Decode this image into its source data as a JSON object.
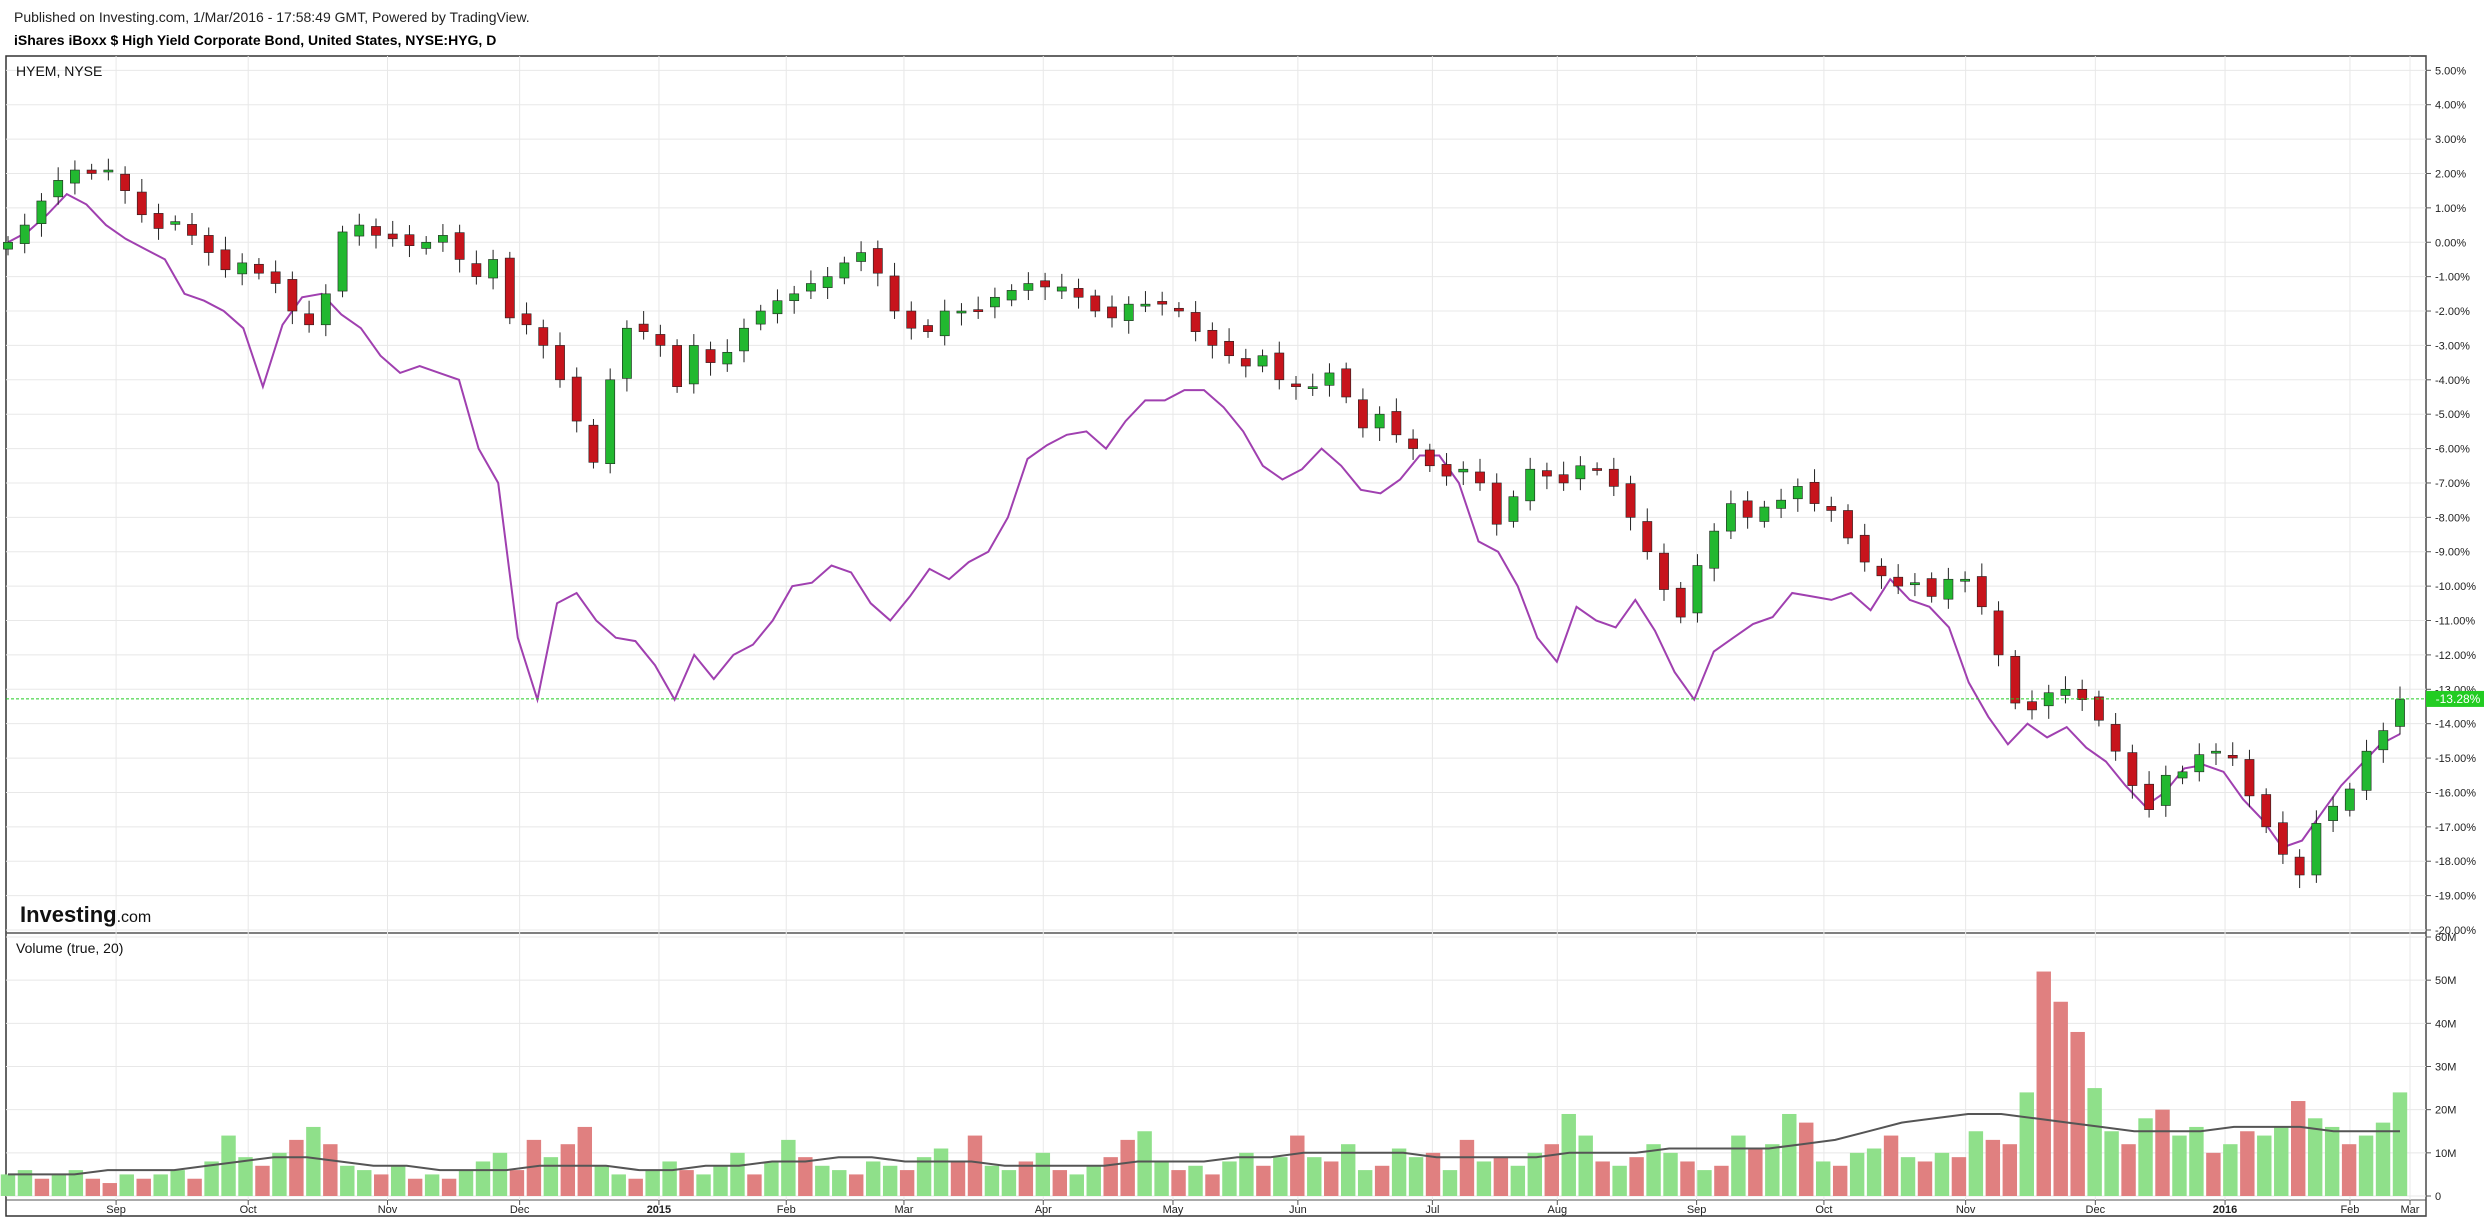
{
  "header": {
    "published_line": "Published on Investing.com, 1/Mar/2016 - 17:58:49 GMT, Powered by TradingView.",
    "chart_title": "iShares iBoxx $ High Yield Corporate Bond, United States, NYSE:HYG, D"
  },
  "colors": {
    "up_candle": "#22b830",
    "down_candle": "#c7141c",
    "comparison_line": "#a040b0",
    "volume_up": "#8fe08a",
    "volume_down": "#e08080",
    "volume_ma": "#555555",
    "current_price_line": "#22cc22",
    "grid": "#e8e8e8"
  },
  "chart_data": [
    {
      "type": "line",
      "pane": "price",
      "series_label": "HYEM, NYSE",
      "ylabel": "",
      "y_unit": "%",
      "ylim": [
        -20,
        5.3
      ],
      "y_ticks": [
        "5.00%",
        "4.00%",
        "3.00%",
        "2.00%",
        "1.00%",
        "0.00%",
        "-1.00%",
        "-2.00%",
        "-3.00%",
        "-4.00%",
        "-5.00%",
        "-6.00%",
        "-7.00%",
        "-8.00%",
        "-9.00%",
        "-10.00%",
        "-11.00%",
        "-12.00%",
        "-13.00%",
        "-14.00%",
        "-15.00%",
        "-16.00%",
        "-17.00%",
        "-18.00%",
        "-19.00%",
        "-20.00%"
      ],
      "x_ticks": [
        "Sep",
        "Oct",
        "Nov",
        "Dec",
        "2015",
        "Feb",
        "Mar",
        "Apr",
        "May",
        "Jun",
        "Jul",
        "Aug",
        "Sep",
        "Oct",
        "Nov",
        "Dec",
        "2016",
        "Feb",
        "Mar"
      ],
      "x_tick_pos": [
        0.045,
        0.1,
        0.158,
        0.213,
        0.271,
        0.324,
        0.373,
        0.431,
        0.485,
        0.537,
        0.593,
        0.645,
        0.703,
        0.756,
        0.815,
        0.869,
        0.923,
        0.975,
        1.0
      ],
      "current_value_label": "-13.28%",
      "current_value": -13.28,
      "hyg_candles_close_pct": [
        0.0,
        0.5,
        1.2,
        1.8,
        2.1,
        2.0,
        2.1,
        1.5,
        0.8,
        0.4,
        0.6,
        0.2,
        -0.3,
        -0.8,
        -0.6,
        -0.9,
        -1.2,
        -2.0,
        -2.4,
        -1.5,
        0.3,
        0.5,
        0.2,
        0.1,
        -0.1,
        0.0,
        0.2,
        -0.5,
        -1.0,
        -0.5,
        -2.2,
        -2.4,
        -3.0,
        -4.0,
        -5.2,
        -6.4,
        -4.0,
        -2.5,
        -2.6,
        -3.0,
        -4.2,
        -3.0,
        -3.5,
        -3.2,
        -2.5,
        -2.0,
        -1.7,
        -1.5,
        -1.2,
        -1.0,
        -0.6,
        -0.3,
        -0.9,
        -2.0,
        -2.5,
        -2.6,
        -2.0,
        -2.0,
        -2.0,
        -1.6,
        -1.4,
        -1.2,
        -1.3,
        -1.3,
        -1.6,
        -2.0,
        -2.2,
        -1.8,
        -1.8,
        -1.8,
        -2.0,
        -2.6,
        -3.0,
        -3.3,
        -3.6,
        -3.3,
        -4.0,
        -4.2,
        -4.2,
        -3.8,
        -4.5,
        -5.4,
        -5.0,
        -5.6,
        -6.0,
        -6.5,
        -6.8,
        -6.6,
        -7.0,
        -8.2,
        -7.4,
        -6.6,
        -6.8,
        -7.0,
        -6.5,
        -6.6,
        -7.1,
        -8.0,
        -9.0,
        -10.1,
        -10.9,
        -9.4,
        -8.4,
        -7.6,
        -8.0,
        -7.7,
        -7.5,
        -7.1,
        -7.6,
        -7.8,
        -8.6,
        -9.3,
        -9.7,
        -10.0,
        -9.9,
        -10.3,
        -9.8,
        -9.8,
        -10.6,
        -12.0,
        -13.4,
        -13.6,
        -13.1,
        -13.0,
        -13.3,
        -13.9,
        -14.8,
        -15.8,
        -16.5,
        -15.5,
        -15.4,
        -14.9,
        -14.8,
        -15.0,
        -16.1,
        -17.0,
        -17.8,
        -18.4,
        -16.9,
        -16.4,
        -15.9,
        -14.8,
        -14.2,
        -13.3
      ]
    },
    {
      "type": "line",
      "pane": "price",
      "series_label": "",
      "comparison_close_pct": [
        0.0,
        0.3,
        0.8,
        1.4,
        1.1,
        0.5,
        0.1,
        -0.2,
        -0.5,
        -1.5,
        -1.7,
        -2.0,
        -2.5,
        -4.2,
        -2.4,
        -1.6,
        -1.5,
        -2.1,
        -2.5,
        -3.3,
        -3.8,
        -3.6,
        -3.8,
        -4.0,
        -6.0,
        -7.0,
        -11.5,
        -13.3,
        -10.5,
        -10.2,
        -11.0,
        -11.5,
        -11.6,
        -12.3,
        -13.3,
        -12.0,
        -12.7,
        -12.0,
        -11.7,
        -11.0,
        -10.0,
        -9.9,
        -9.4,
        -9.6,
        -10.5,
        -11.0,
        -10.3,
        -9.5,
        -9.8,
        -9.3,
        -9.0,
        -8.0,
        -6.3,
        -5.9,
        -5.6,
        -5.5,
        -6.0,
        -5.2,
        -4.6,
        -4.6,
        -4.3,
        -4.3,
        -4.8,
        -5.5,
        -6.5,
        -6.9,
        -6.6,
        -6.0,
        -6.5,
        -7.2,
        -7.3,
        -6.9,
        -6.2,
        -6.2,
        -7.0,
        -8.7,
        -9.0,
        -10.0,
        -11.5,
        -12.2,
        -10.6,
        -11.0,
        -11.2,
        -10.4,
        -11.3,
        -12.5,
        -13.3,
        -11.9,
        -11.5,
        -11.1,
        -10.9,
        -10.2,
        -10.3,
        -10.4,
        -10.2,
        -10.7,
        -9.8,
        -10.4,
        -10.6,
        -11.2,
        -12.8,
        -13.8,
        -14.6,
        -14.0,
        -14.4,
        -14.1,
        -14.7,
        -15.1,
        -15.8,
        -16.4,
        -16.0,
        -15.3,
        -15.2,
        -15.4,
        -16.2,
        -16.8,
        -17.6,
        -17.4,
        -16.6,
        -15.8,
        -15.2,
        -14.6,
        -14.3
      ]
    },
    {
      "type": "bar",
      "pane": "volume",
      "series_label": "Volume (true, 20)",
      "ylim": [
        0,
        60
      ],
      "y_unit": "M",
      "y_ticks": [
        "0",
        "10M",
        "20M",
        "30M",
        "40M",
        "50M",
        "60M"
      ],
      "volume_m": [
        5,
        6,
        4,
        5,
        6,
        4,
        3,
        5,
        4,
        5,
        6,
        4,
        8,
        14,
        9,
        7,
        10,
        13,
        16,
        12,
        7,
        6,
        5,
        7,
        4,
        5,
        4,
        6,
        8,
        10,
        6,
        13,
        9,
        12,
        16,
        7,
        5,
        4,
        6,
        8,
        6,
        5,
        7,
        10,
        5,
        8,
        13,
        9,
        7,
        6,
        5,
        8,
        7,
        6,
        9,
        11,
        8,
        14,
        7,
        6,
        8,
        10,
        6,
        5,
        7,
        9,
        13,
        15,
        8,
        6,
        7,
        5,
        8,
        10,
        7,
        9,
        14,
        9,
        8,
        12,
        6,
        7,
        11,
        9,
        10,
        6,
        13,
        8,
        9,
        7,
        10,
        12,
        19,
        14,
        8,
        7,
        9,
        12,
        10,
        8,
        6,
        7,
        14,
        11,
        12,
        19,
        17,
        8,
        7,
        10,
        11,
        14,
        9,
        8,
        10,
        9,
        15,
        13,
        12,
        24,
        52,
        45,
        38,
        25,
        15,
        12,
        18,
        20,
        14,
        16,
        10,
        12,
        15,
        14,
        16,
        22,
        18,
        16,
        12,
        14,
        17,
        24
      ],
      "volume_up": [
        1,
        1,
        0,
        1,
        1,
        0,
        0,
        1,
        0,
        1,
        1,
        0,
        1,
        1,
        1,
        0,
        1,
        0,
        1,
        0,
        1,
        1,
        0,
        1,
        0,
        1,
        0,
        1,
        1,
        1,
        0,
        0,
        1,
        0,
        0,
        1,
        1,
        0,
        1,
        1,
        0,
        1,
        1,
        1,
        0,
        1,
        1,
        0,
        1,
        1,
        0,
        1,
        1,
        0,
        1,
        1,
        0,
        0,
        1,
        1,
        0,
        1,
        0,
        1,
        1,
        0,
        0,
        1,
        1,
        0,
        1,
        0,
        1,
        1,
        0,
        1,
        0,
        1,
        0,
        1,
        1,
        0,
        1,
        1,
        0,
        1,
        0,
        1,
        0,
        1,
        1,
        0,
        1,
        1,
        0,
        1,
        0,
        1,
        1,
        0,
        1,
        0,
        1,
        0,
        1,
        1,
        0,
        1,
        0,
        1,
        1,
        0,
        1,
        0,
        1,
        0,
        1,
        0,
        0,
        1,
        0,
        0,
        0,
        1,
        1,
        0,
        1,
        0,
        1,
        1,
        0,
        1,
        0,
        1,
        1,
        0,
        1,
        1,
        0,
        1,
        1,
        1
      ],
      "volume_ma_m": [
        5,
        5,
        5,
        6,
        6,
        6,
        7,
        8,
        9,
        9,
        8,
        7,
        7,
        6,
        6,
        6,
        7,
        7,
        7,
        6,
        6,
        7,
        7,
        8,
        8,
        9,
        9,
        8,
        8,
        8,
        7,
        7,
        7,
        7,
        8,
        8,
        8,
        9,
        9,
        10,
        10,
        10,
        10,
        9,
        9,
        9,
        9,
        10,
        10,
        10,
        11,
        11,
        11,
        11,
        12,
        13,
        15,
        17,
        18,
        19,
        19,
        18,
        17,
        16,
        15,
        15,
        15,
        16,
        16,
        16,
        15,
        15,
        15
      ]
    }
  ],
  "watermark": {
    "brand_bold": "Investing",
    "brand_suffix": ".com"
  }
}
